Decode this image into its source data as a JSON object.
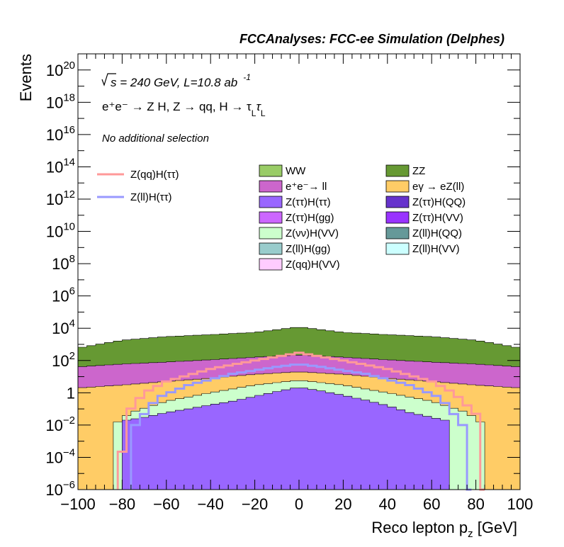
{
  "chart_data": {
    "type": "histogram-stacked",
    "title": "FCCAnalyses: FCC-ee Simulation (Delphes)",
    "xlabel_main": "Reco lepton p",
    "xlabel_sub": "z",
    "xlabel_unit": " [GeV]",
    "ylabel": "Events",
    "xlim": [
      -100,
      100
    ],
    "ylim": [
      1e-06,
      1e+21
    ],
    "y_scale": "log",
    "x_ticks": [
      "−100",
      "−80",
      "−60",
      "−40",
      "−20",
      "0",
      "20",
      "40",
      "60",
      "80",
      "100"
    ],
    "y_ticks": [
      {
        "base": "10",
        "exp": "−6",
        "logv": -6
      },
      {
        "base": "10",
        "exp": "−4",
        "logv": -4
      },
      {
        "base": "10",
        "exp": "−2",
        "logv": -2
      },
      {
        "base": "1",
        "exp": "",
        "logv": 0
      },
      {
        "base": "10",
        "exp": "2",
        "logv": 2
      },
      {
        "base": "10",
        "exp": "4",
        "logv": 4
      },
      {
        "base": "10",
        "exp": "6",
        "logv": 6
      },
      {
        "base": "10",
        "exp": "8",
        "logv": 8
      },
      {
        "base": "10",
        "exp": "10",
        "logv": 10
      },
      {
        "base": "10",
        "exp": "12",
        "logv": 12
      },
      {
        "base": "10",
        "exp": "14",
        "logv": 14
      },
      {
        "base": "10",
        "exp": "16",
        "logv": 16
      },
      {
        "base": "10",
        "exp": "18",
        "logv": 18
      },
      {
        "base": "10",
        "exp": "20",
        "logv": 20
      }
    ],
    "annotations": {
      "sqrt_s": "s = 240 GeV, L=10.8 ab",
      "lumi_exp": "-1",
      "process": "e⁺e⁻ → Z H, Z → qq, H → τ",
      "process_sub": "L",
      "selection": "No additional selection"
    },
    "legend_lines": [
      {
        "name": "Z(qq)H(ττ)",
        "color": "#ff9999"
      },
      {
        "name": "Z(ll)H(ττ)",
        "color": "#9999ff"
      }
    ],
    "legend_fills": [
      {
        "name": "WW",
        "color": "#99cc66"
      },
      {
        "name": "ZZ",
        "color": "#669933"
      },
      {
        "name": "e⁺e⁻→ ll",
        "color": "#cc66cc"
      },
      {
        "name": "eγ → eZ(ll)",
        "color": "#ffcc66"
      },
      {
        "name": "Z(ττ)H(ττ)",
        "color": "#9966ff"
      },
      {
        "name": "Z(ττ)H(QQ)",
        "color": "#6633cc"
      },
      {
        "name": "Z(ττ)H(gg)",
        "color": "#cc66ff"
      },
      {
        "name": "Z(ττ)H(VV)",
        "color": "#9933ff"
      },
      {
        "name": "Z(νν)H(VV)",
        "color": "#ccffcc"
      },
      {
        "name": "Z(ll)H(QQ)",
        "color": "#669999"
      },
      {
        "name": "Z(ll)H(gg)",
        "color": "#99cccc"
      },
      {
        "name": "Z(ll)H(VV)",
        "color": "#ccffff"
      },
      {
        "name": "Z(qq)H(VV)",
        "color": "#ffccff"
      }
    ],
    "stack_layers": [
      {
        "name": "Z(ττ)H(ττ)",
        "color": "#9966ff",
        "edges": [
          -78,
          52,
          56,
          66,
          80
        ],
        "values": [
          {
            "x": -78,
            "y": 0.02
          },
          {
            "x": -70,
            "y": 0.03
          },
          {
            "x": -60,
            "y": 0.06
          },
          {
            "x": -50,
            "y": 0.1
          },
          {
            "x": -40,
            "y": 0.18
          },
          {
            "x": -30,
            "y": 0.3
          },
          {
            "x": -20,
            "y": 0.6
          },
          {
            "x": -10,
            "y": 1.2
          },
          {
            "x": 0,
            "y": 2.2
          },
          {
            "x": 10,
            "y": 1.3
          },
          {
            "x": 20,
            "y": 0.7
          },
          {
            "x": 30,
            "y": 0.35
          },
          {
            "x": 40,
            "y": 0.16
          },
          {
            "x": 50,
            "y": 0.06
          },
          {
            "x": 60,
            "y": 0.03
          },
          {
            "x": 66,
            "y": 0.02
          }
        ]
      },
      {
        "name": "Z(νν)H(VV)",
        "color": "#ccffcc",
        "values": [
          {
            "x": -84,
            "y": 0.01
          },
          {
            "x": -76,
            "y": 0.06
          },
          {
            "x": -60,
            "y": 0.3
          },
          {
            "x": -40,
            "y": 1.0
          },
          {
            "x": -20,
            "y": 3
          },
          {
            "x": 0,
            "y": 6
          },
          {
            "x": 20,
            "y": 3
          },
          {
            "x": 40,
            "y": 1.0
          },
          {
            "x": 60,
            "y": 0.3
          },
          {
            "x": 76,
            "y": 0.06
          },
          {
            "x": 84,
            "y": 0.01
          }
        ]
      },
      {
        "name": "eγ → eZ(ll)",
        "color": "#ffcc66",
        "values": [
          {
            "x": -100,
            "y": 2
          },
          {
            "x": -80,
            "y": 3
          },
          {
            "x": -60,
            "y": 5
          },
          {
            "x": -40,
            "y": 8
          },
          {
            "x": -20,
            "y": 14
          },
          {
            "x": 0,
            "y": 20
          },
          {
            "x": 20,
            "y": 14
          },
          {
            "x": 40,
            "y": 8
          },
          {
            "x": 60,
            "y": 5
          },
          {
            "x": 80,
            "y": 3
          },
          {
            "x": 100,
            "y": 2
          }
        ]
      },
      {
        "name": "e⁺e⁻→ ll",
        "color": "#cc66cc",
        "values": [
          {
            "x": -100,
            "y": 40
          },
          {
            "x": -80,
            "y": 60
          },
          {
            "x": -60,
            "y": 80
          },
          {
            "x": -40,
            "y": 110
          },
          {
            "x": -20,
            "y": 160
          },
          {
            "x": 0,
            "y": 220
          },
          {
            "x": 20,
            "y": 160
          },
          {
            "x": 40,
            "y": 110
          },
          {
            "x": 60,
            "y": 80
          },
          {
            "x": 80,
            "y": 60
          },
          {
            "x": 100,
            "y": 40
          }
        ]
      },
      {
        "name": "ZZ",
        "color": "#669933",
        "values": [
          {
            "x": -100,
            "y": 600
          },
          {
            "x": -80,
            "y": 1800
          },
          {
            "x": -60,
            "y": 3000
          },
          {
            "x": -40,
            "y": 4000
          },
          {
            "x": -20,
            "y": 5500
          },
          {
            "x": 0,
            "y": 12000
          },
          {
            "x": 20,
            "y": 5500
          },
          {
            "x": 40,
            "y": 4000
          },
          {
            "x": 60,
            "y": 3000
          },
          {
            "x": 80,
            "y": 1800
          },
          {
            "x": 100,
            "y": 600
          }
        ]
      }
    ],
    "overlay_lines": [
      {
        "name": "Z(qq)H(ττ)",
        "color": "#ff9999",
        "values": [
          {
            "x": -82,
            "y": 1e-06
          },
          {
            "x": -78,
            "y": 0.05
          },
          {
            "x": -70,
            "y": 1
          },
          {
            "x": -60,
            "y": 5
          },
          {
            "x": -40,
            "y": 30
          },
          {
            "x": -20,
            "y": 100
          },
          {
            "x": 0,
            "y": 300
          },
          {
            "x": 20,
            "y": 100
          },
          {
            "x": 40,
            "y": 30
          },
          {
            "x": 60,
            "y": 5
          },
          {
            "x": 70,
            "y": 1
          },
          {
            "x": 80,
            "y": 0.05
          },
          {
            "x": 84,
            "y": 1e-06
          }
        ]
      },
      {
        "name": "Z(ll)H(ττ)",
        "color": "#9999ff",
        "values": [
          {
            "x": -76,
            "y": 1e-06
          },
          {
            "x": -74,
            "y": 0.01
          },
          {
            "x": -64,
            "y": 0.5
          },
          {
            "x": -50,
            "y": 3
          },
          {
            "x": -30,
            "y": 15
          },
          {
            "x": -10,
            "y": 40
          },
          {
            "x": 0,
            "y": 60
          },
          {
            "x": 10,
            "y": 40
          },
          {
            "x": 30,
            "y": 15
          },
          {
            "x": 50,
            "y": 3
          },
          {
            "x": 64,
            "y": 0.5
          },
          {
            "x": 74,
            "y": 0.01
          },
          {
            "x": 78,
            "y": 1e-06
          }
        ]
      }
    ]
  }
}
